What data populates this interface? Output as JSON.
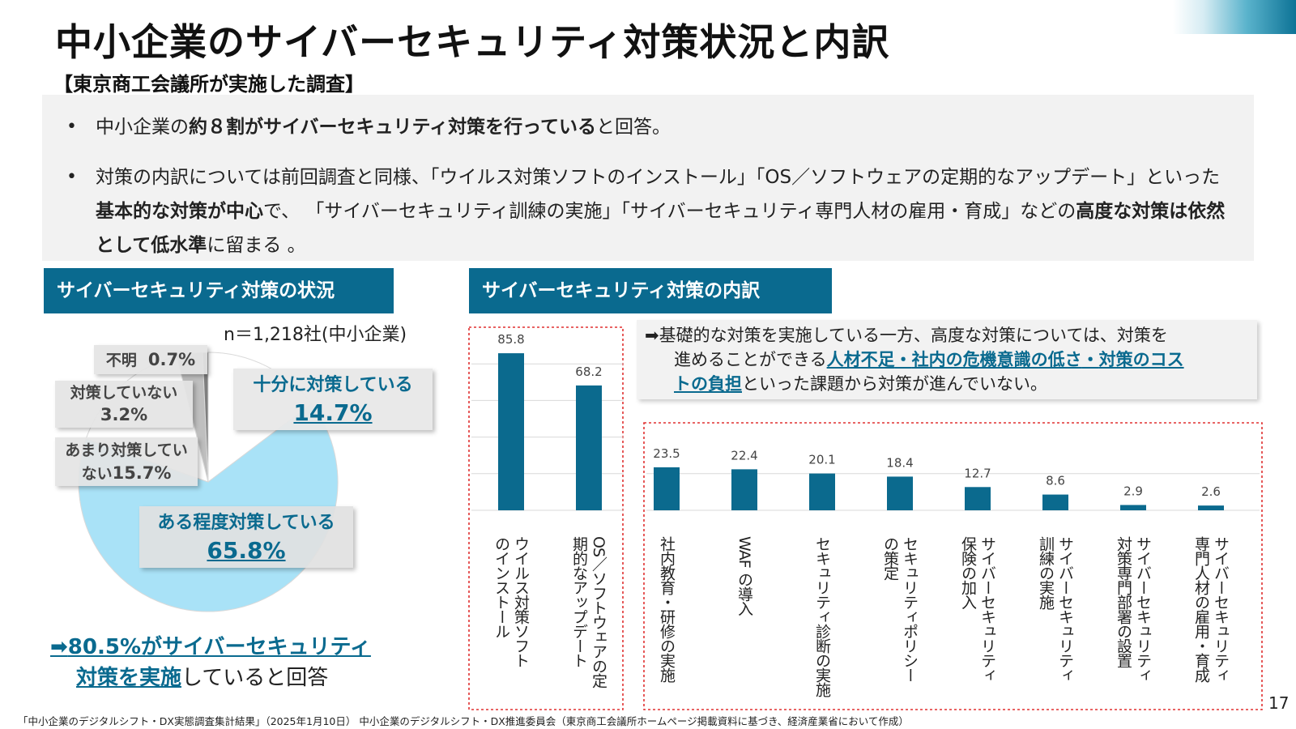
{
  "title": "中小企業のサイバーセキュリティ対策状況と内訳",
  "subtitle": "【東京商工会議所が実施した調査】",
  "summary": {
    "bullet_mark": "•",
    "bullet1": {
      "pre": "中小企業の",
      "bold": "約８割がサイバーセキュリティ対策を行っている",
      "post": "と回答。"
    },
    "bullet2": {
      "part1": "対策の内訳については前回調査と同様、「ウイルス対策ソフトのインストール」「OS／ソフトウェアの定期的なアップデート」といった",
      "bold1": "基本的な対策が中心",
      "part2": "で、 「サイバーセキュリティ訓練の実施」「サイバーセキュリティ専門人材の雇用・育成」などの",
      "bold2": "高度な対策は依然として低水準",
      "part3": "に留まる 。"
    }
  },
  "left_section_label": "サイバーセキュリティ対策の状況",
  "right_section_label": "サイバーセキュリティ対策の内訳",
  "n_label": "n＝1,218社(中小企業)",
  "pie_labels": {
    "unknown": {
      "label": "不明",
      "value": "0.7%"
    },
    "none": {
      "label": "対策していない",
      "value": "3.2%"
    },
    "little": {
      "label_line1": "あまり対策してい",
      "label_line2": "ない",
      "value": "15.7%"
    },
    "full": {
      "label": "十分に対策している",
      "value": "14.7%"
    },
    "some": {
      "label": "ある程度対策している",
      "value": "65.8%"
    }
  },
  "conclusion": {
    "arrow": "➡",
    "blue1": "80.5%がサイバーセキュリティ",
    "blue2": "対策を実施",
    "rest": "していると回答"
  },
  "callout": {
    "arrow": "➡",
    "text1": "基礎的な対策を実施している一方、高度な対策については、対策を",
    "text2": "進めることができる",
    "link1": "人材不足",
    "sep1": "・",
    "link2": "社内の危機意識の低さ",
    "sep2": "・",
    "link3a": "対策のコス",
    "link3b": "トの負担",
    "text3": "といった課題から対策が進んでいない。"
  },
  "page_number": "17",
  "footnote": "「中小企業のデジタルシフト・DX実態調査集計結果」（2025年1月10日） 中小企業のデジタルシフト・DX推進委員会（東京商工会議所ホームページ掲載資料に基づき、経済産業省において作成）",
  "colors": {
    "brand": "#0a6a8f",
    "pie_some": "#a9e2f7",
    "pie_full": "#ffffff",
    "pie_little": "#ffffff",
    "pie_none": "#bfbfbf",
    "pie_unknown": "#7f7f7f",
    "bar": "#0b6a8e",
    "dashed_border": "#e03030"
  },
  "chart_data": [
    {
      "type": "pie",
      "title": "サイバーセキュリティ対策の状況",
      "slices": [
        {
          "name": "十分に対策している",
          "value": 14.7
        },
        {
          "name": "ある程度対策している",
          "value": 65.8
        },
        {
          "name": "あまり対策していない",
          "value": 15.7
        },
        {
          "name": "対策していない",
          "value": 3.2
        },
        {
          "name": "不明",
          "value": 0.7
        }
      ]
    },
    {
      "type": "bar",
      "title": "サイバーセキュリティ対策の内訳",
      "categories": [
        [
          "ウイルス対策ソフト",
          "のインストール"
        ],
        [
          "OS／ソフトウェアの定",
          "期的なアップデート"
        ],
        [
          "社内教育・研修の実施"
        ],
        [
          "WAF の導入"
        ],
        [
          "セキュリティ診断の実施"
        ],
        [
          "セキュリティポリシー",
          "の策定"
        ],
        [
          "サイバーセキュリティ",
          "保険の加入"
        ],
        [
          "サイバーセキュリティ",
          "訓練の実施"
        ],
        [
          "サイバーセキュリティ",
          "対策専門部署の設置"
        ],
        [
          "サイバーセキュリティ",
          "専門人材の雇用・育成"
        ]
      ],
      "values": [
        85.8,
        68.2,
        23.5,
        22.4,
        20.1,
        18.4,
        12.7,
        8.6,
        2.9,
        2.6
      ],
      "value_labels": [
        "85.8",
        "68.2",
        "23.5",
        "22.4",
        "20.1",
        "18.4",
        "12.7",
        "8.6",
        "2.9",
        "2.6"
      ],
      "grid": true
    }
  ]
}
